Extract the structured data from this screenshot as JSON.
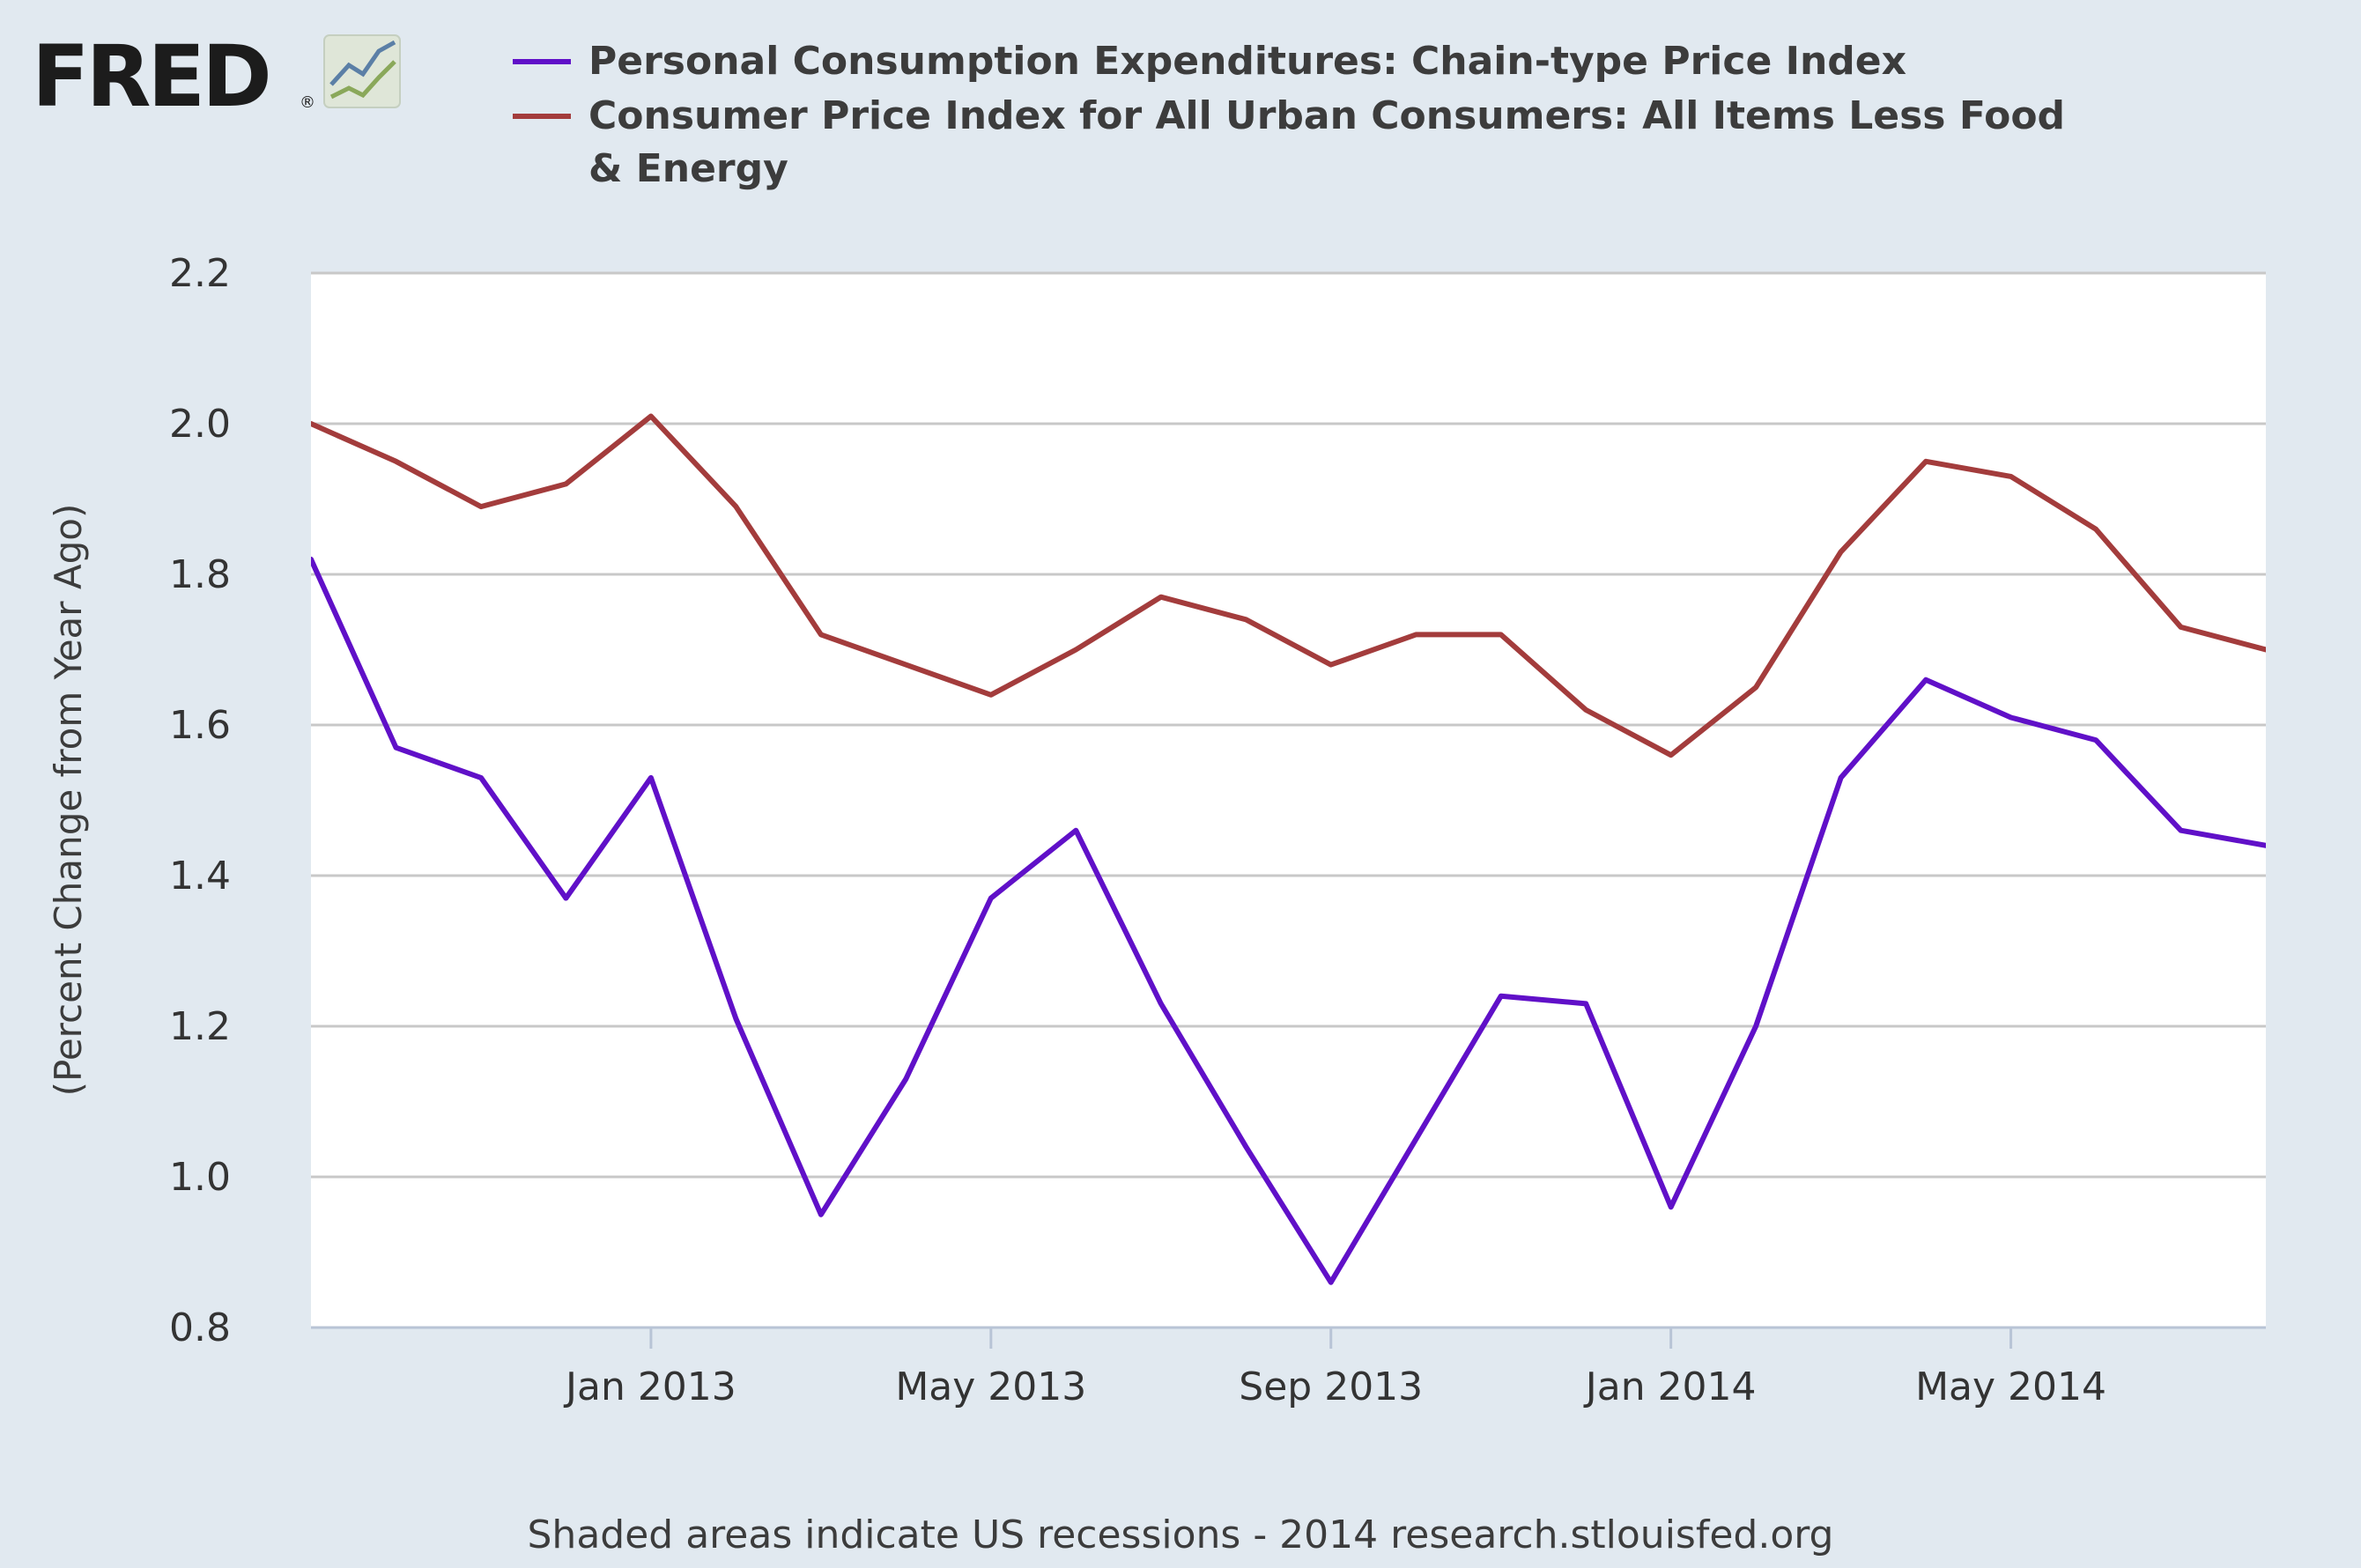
{
  "logo": {
    "text": "FRED",
    "mark": "®"
  },
  "chart_data": {
    "type": "line",
    "title": "",
    "ylabel": "(Percent Change from Year Ago)",
    "xlabel": "",
    "ylim": [
      0.8,
      2.2
    ],
    "yticks": [
      "0.8",
      "1.0",
      "1.2",
      "1.4",
      "1.6",
      "1.8",
      "2.0",
      "2.2"
    ],
    "x": [
      "2012-09",
      "2012-10",
      "2012-11",
      "2012-12",
      "2013-01",
      "2013-02",
      "2013-03",
      "2013-04",
      "2013-05",
      "2013-06",
      "2013-07",
      "2013-08",
      "2013-09",
      "2013-10",
      "2013-11",
      "2013-12",
      "2014-01",
      "2014-02",
      "2014-03",
      "2014-04",
      "2014-05",
      "2014-06",
      "2014-07",
      "2014-08"
    ],
    "xticks": [
      {
        "x": "2013-01",
        "label": "Jan 2013"
      },
      {
        "x": "2013-05",
        "label": "May 2013"
      },
      {
        "x": "2013-09",
        "label": "Sep 2013"
      },
      {
        "x": "2014-01",
        "label": "Jan 2014"
      },
      {
        "x": "2014-05",
        "label": "May 2014"
      }
    ],
    "grid": true,
    "legend_position": "top",
    "series": [
      {
        "name": "Personal Consumption Expenditures: Chain-type Price Index",
        "color": "#6010c8",
        "values": [
          1.82,
          1.57,
          1.53,
          1.37,
          1.53,
          1.21,
          0.95,
          1.13,
          1.37,
          1.46,
          1.23,
          1.04,
          0.86,
          1.05,
          1.24,
          1.23,
          0.96,
          1.2,
          1.53,
          1.66,
          1.61,
          1.58,
          1.46,
          1.44
        ]
      },
      {
        "name": "Consumer Price Index for All Urban Consumers: All Items Less Food & Energy",
        "color": "#a33c3c",
        "values": [
          2.0,
          1.95,
          1.89,
          1.92,
          2.01,
          1.89,
          1.72,
          1.68,
          1.64,
          1.7,
          1.77,
          1.74,
          1.68,
          1.72,
          1.72,
          1.62,
          1.56,
          1.65,
          1.83,
          1.95,
          1.93,
          1.86,
          1.73,
          1.7
        ]
      }
    ]
  },
  "legend_lines": [
    [
      "Personal Consumption Expenditures: Chain-type Price Index"
    ],
    [
      "Consumer Price Index for All Urban Consumers: All Items Less Food",
      "& Energy"
    ]
  ],
  "footer": "Shaded areas indicate US recessions - 2014 research.stlouisfed.org"
}
